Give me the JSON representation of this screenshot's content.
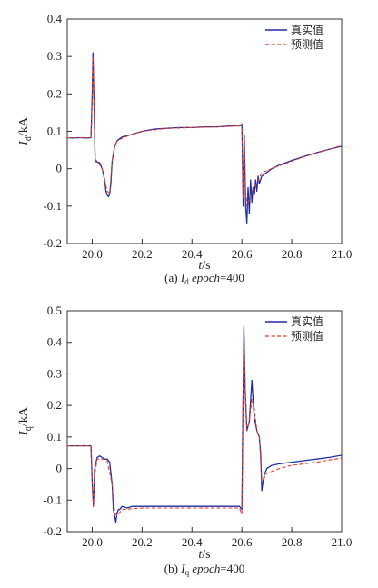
{
  "chart_data": [
    {
      "type": "line",
      "caption_prefix": "(a) ",
      "caption_var": "I",
      "caption_sub": "d",
      "caption_epoch": "epoch",
      "caption_val": "=400",
      "ylabel_main": "I",
      "ylabel_sub": "d",
      "ylabel_unit": "/kA",
      "xlabel_main": "t",
      "xlabel_unit": "/s",
      "xlim": [
        19.9,
        21.0
      ],
      "ylim": [
        -0.2,
        0.4
      ],
      "xticks": [
        "20.0",
        "20.2",
        "20.4",
        "20.6",
        "20.8",
        "21.0"
      ],
      "yticks": [
        "-0.2",
        "-0.1",
        "0",
        "0.1",
        "0.2",
        "0.3",
        "0.4"
      ],
      "legend_position": "top-right",
      "series": [
        {
          "name": "真实值",
          "color": "#1f2fa0",
          "style": "solid",
          "x": [
            19.9,
            19.92,
            19.95,
            19.98,
            19.995,
            20.0,
            20.003,
            20.008,
            20.012,
            20.02,
            20.03,
            20.04,
            20.05,
            20.055,
            20.06,
            20.065,
            20.07,
            20.075,
            20.08,
            20.09,
            20.1,
            20.12,
            20.15,
            20.2,
            20.25,
            20.3,
            20.35,
            20.4,
            20.45,
            20.5,
            20.55,
            20.58,
            20.595,
            20.6,
            20.605,
            20.61,
            20.615,
            20.62,
            20.625,
            20.63,
            20.635,
            20.64,
            20.645,
            20.65,
            20.655,
            20.66,
            20.665,
            20.67,
            20.68,
            20.7,
            20.72,
            20.75,
            20.8,
            20.85,
            20.9,
            20.95,
            21.0
          ],
          "y": [
            0.083,
            0.082,
            0.083,
            0.082,
            0.083,
            0.2,
            0.31,
            0.15,
            0.02,
            0.018,
            0.016,
            0.0,
            -0.03,
            -0.06,
            -0.07,
            -0.075,
            -0.068,
            -0.04,
            0.02,
            0.06,
            0.075,
            0.085,
            0.09,
            0.1,
            0.106,
            0.108,
            0.11,
            0.11,
            0.112,
            0.112,
            0.114,
            0.115,
            0.115,
            0.12,
            -0.1,
            0.09,
            -0.1,
            -0.145,
            -0.05,
            -0.12,
            -0.03,
            -0.09,
            -0.05,
            -0.07,
            -0.03,
            -0.06,
            -0.02,
            -0.04,
            -0.02,
            -0.01,
            0.0,
            0.01,
            0.022,
            0.033,
            0.043,
            0.052,
            0.06
          ]
        },
        {
          "name": "预测值",
          "color": "#e53a2c",
          "style": "dashed",
          "x": [
            19.9,
            19.95,
            19.995,
            20.0,
            20.003,
            20.008,
            20.012,
            20.02,
            20.04,
            20.06,
            20.07,
            20.08,
            20.09,
            20.1,
            20.15,
            20.2,
            20.3,
            20.4,
            20.5,
            20.58,
            20.595,
            20.6,
            20.605,
            20.61,
            20.615,
            20.62,
            20.63,
            20.64,
            20.66,
            20.68,
            20.7,
            20.75,
            20.8,
            20.85,
            20.9,
            20.95,
            21.0
          ],
          "y": [
            0.083,
            0.083,
            0.083,
            0.19,
            0.3,
            0.15,
            0.025,
            0.02,
            0.0,
            -0.06,
            -0.065,
            0.02,
            0.058,
            0.075,
            0.09,
            0.1,
            0.108,
            0.11,
            0.112,
            0.114,
            0.114,
            0.12,
            -0.08,
            0.08,
            -0.06,
            -0.1,
            -0.08,
            -0.06,
            -0.04,
            -0.01,
            -0.005,
            0.008,
            0.02,
            0.032,
            0.042,
            0.052,
            0.062
          ]
        }
      ]
    },
    {
      "type": "line",
      "caption_prefix": "(b) ",
      "caption_var": "I",
      "caption_sub": "q",
      "caption_epoch": "epoch",
      "caption_val": "=400",
      "ylabel_main": "I",
      "ylabel_sub": "q",
      "ylabel_unit": "/kA",
      "xlabel_main": "t",
      "xlabel_unit": "/s",
      "xlim": [
        19.9,
        21.0
      ],
      "ylim": [
        -0.2,
        0.5
      ],
      "xticks": [
        "20.0",
        "20.2",
        "20.4",
        "20.6",
        "20.8",
        "21.0"
      ],
      "yticks": [
        "-0.2",
        "-0.1",
        "0",
        "0.1",
        "0.2",
        "0.3",
        "0.4",
        "0.5"
      ],
      "legend_position": "top-right",
      "series": [
        {
          "name": "真实值",
          "color": "#1f2fa0",
          "style": "solid",
          "x": [
            19.9,
            19.95,
            19.995,
            20.0,
            20.005,
            20.01,
            20.02,
            20.03,
            20.04,
            20.05,
            20.06,
            20.07,
            20.08,
            20.085,
            20.09,
            20.095,
            20.1,
            20.105,
            20.11,
            20.12,
            20.14,
            20.16,
            20.2,
            20.3,
            20.4,
            20.5,
            20.59,
            20.6,
            20.603,
            20.608,
            20.613,
            20.62,
            20.63,
            20.64,
            20.645,
            20.65,
            20.66,
            20.67,
            20.675,
            20.68,
            20.685,
            20.69,
            20.7,
            20.72,
            20.75,
            20.8,
            20.85,
            20.9,
            20.95,
            21.0
          ],
          "y": [
            0.072,
            0.072,
            0.072,
            -0.05,
            -0.12,
            0.0,
            0.035,
            0.04,
            0.035,
            0.03,
            0.03,
            0.02,
            -0.05,
            -0.13,
            -0.15,
            -0.17,
            -0.14,
            -0.13,
            -0.13,
            -0.12,
            -0.125,
            -0.12,
            -0.12,
            -0.12,
            -0.12,
            -0.12,
            -0.12,
            -0.13,
            0.1,
            0.45,
            0.25,
            0.12,
            0.15,
            0.28,
            0.22,
            0.16,
            0.12,
            0.1,
            0.05,
            -0.07,
            -0.04,
            -0.02,
            0.0,
            0.01,
            0.015,
            0.02,
            0.025,
            0.03,
            0.035,
            0.042
          ]
        },
        {
          "name": "预测值",
          "color": "#e53a2c",
          "style": "dashed",
          "x": [
            19.9,
            19.95,
            19.995,
            20.0,
            20.005,
            20.01,
            20.02,
            20.04,
            20.06,
            20.08,
            20.09,
            20.1,
            20.12,
            20.2,
            20.3,
            20.4,
            20.5,
            20.59,
            20.6,
            20.603,
            20.608,
            20.615,
            20.62,
            20.63,
            20.64,
            20.65,
            20.66,
            20.67,
            20.68,
            20.69,
            20.7,
            20.75,
            20.8,
            20.85,
            20.9,
            20.95,
            21.0
          ],
          "y": [
            0.072,
            0.072,
            0.072,
            -0.04,
            -0.12,
            -0.02,
            0.03,
            0.03,
            0.025,
            -0.05,
            -0.14,
            -0.15,
            -0.13,
            -0.125,
            -0.125,
            -0.125,
            -0.125,
            -0.125,
            -0.145,
            0.1,
            0.42,
            0.22,
            0.12,
            0.15,
            0.22,
            0.19,
            0.12,
            0.1,
            -0.04,
            -0.03,
            -0.015,
            0.0,
            0.01,
            0.015,
            0.02,
            0.027,
            0.033
          ]
        }
      ]
    }
  ]
}
